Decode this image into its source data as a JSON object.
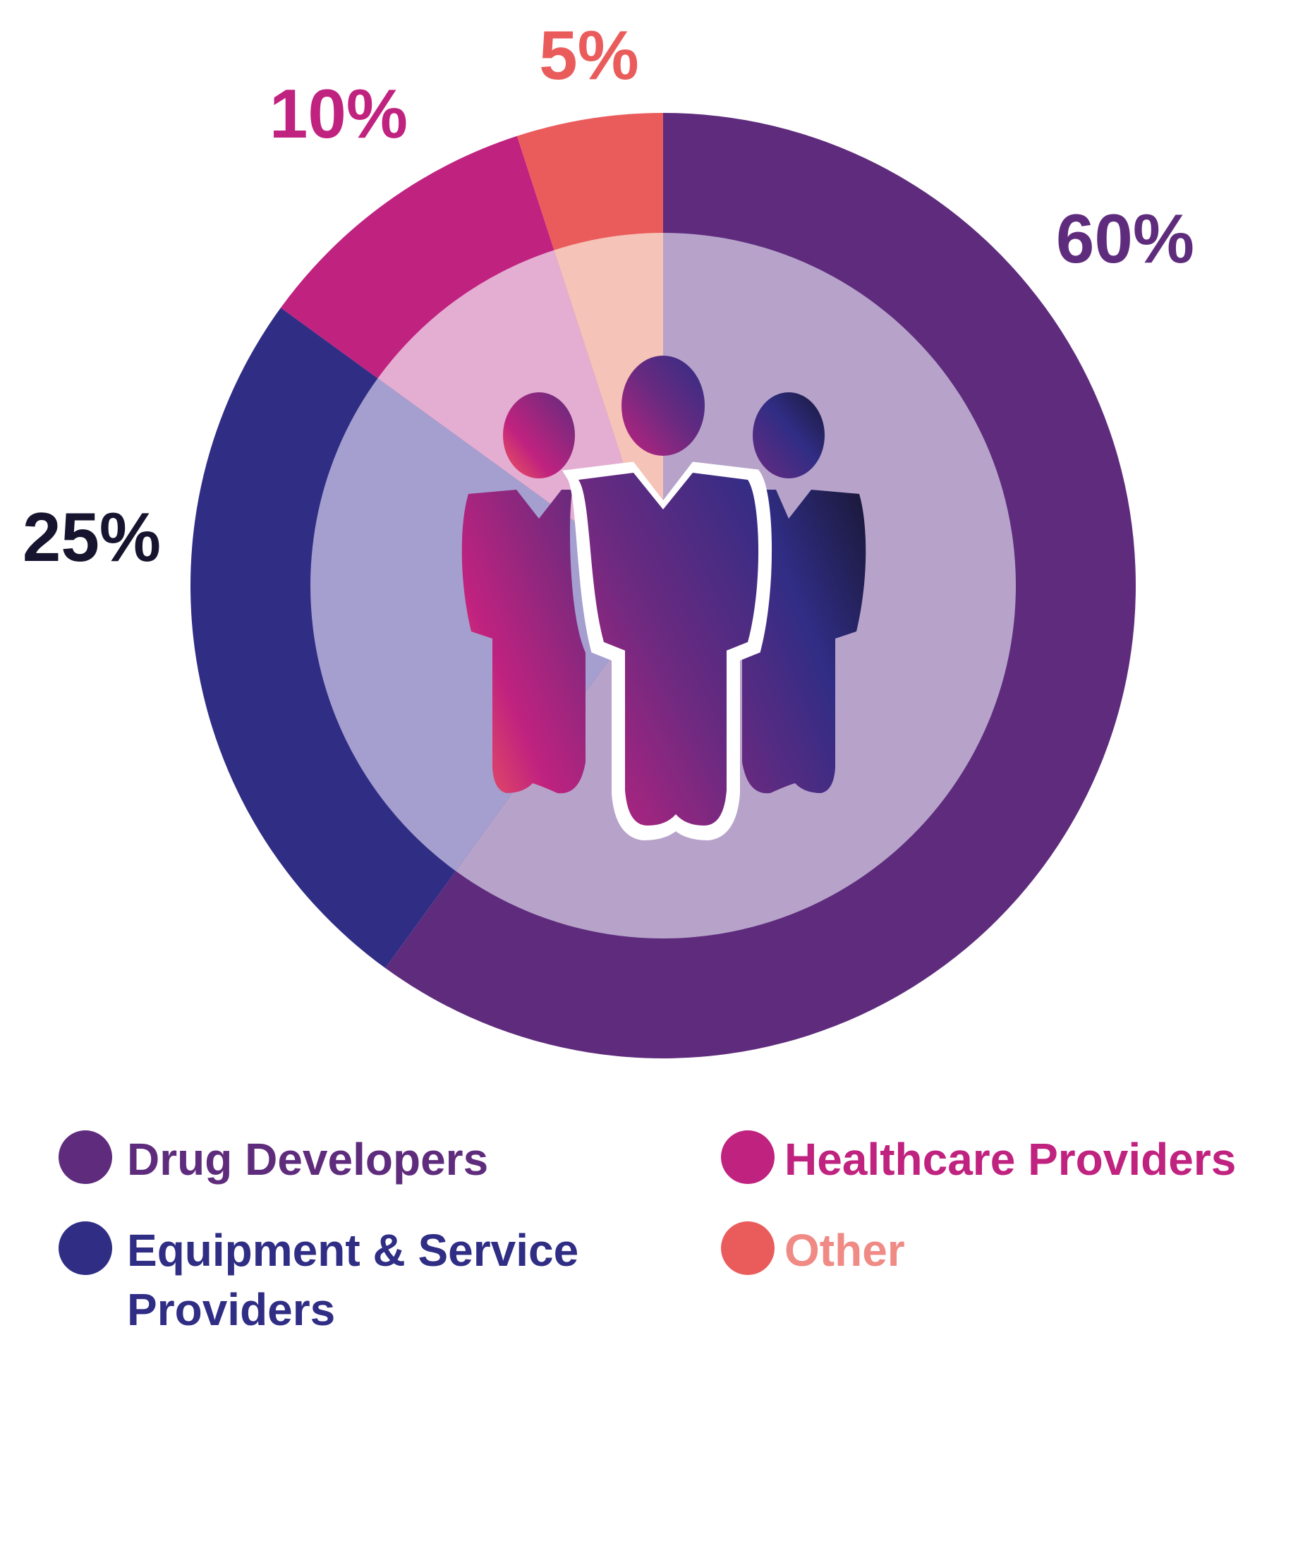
{
  "chart_data": {
    "type": "pie",
    "style": "donut",
    "categories": [
      "Drug Developers",
      "Equipment & Service Providers",
      "Healthcare Providers",
      "Other"
    ],
    "values": [
      60,
      25,
      10,
      5
    ],
    "value_labels": [
      "60%",
      "25%",
      "10%",
      "5%"
    ],
    "colors": [
      "#5f2c7d",
      "#302d85",
      "#c0227f",
      "#ea5c5c"
    ],
    "inner_colors": [
      "#b7a3ca",
      "#a49fce",
      "#e4aed2",
      "#f5c3b8"
    ],
    "label_colors": [
      "#5f2c7d",
      "#16142e",
      "#c0227f",
      "#ea5c5c"
    ],
    "legend": {
      "position": "bottom",
      "items": [
        {
          "label": "Drug Developers",
          "color": "#5f2c7d",
          "text_color": "#5f2c7d"
        },
        {
          "label": "Healthcare Providers",
          "color": "#c0227f",
          "text_color": "#c0227f"
        },
        {
          "label": "Equipment & Service",
          "label_line2": "Providers",
          "color": "#302d85",
          "text_color": "#302d85"
        },
        {
          "label": "Other",
          "color": "#ea5c5c",
          "text_color": "#f08a85"
        }
      ]
    },
    "center_icon": "people-group-icon"
  }
}
